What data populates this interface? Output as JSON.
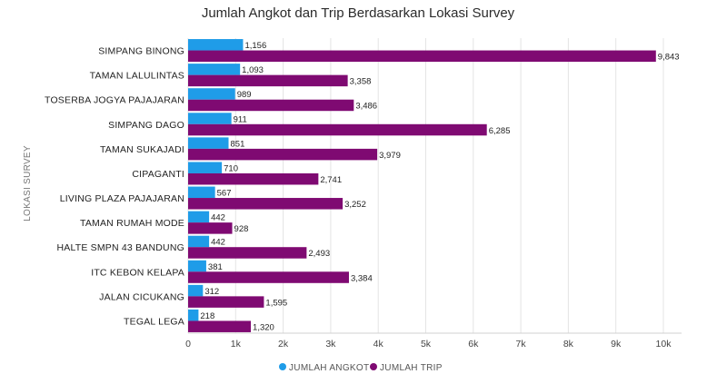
{
  "chart_data": {
    "type": "bar",
    "orientation": "horizontal",
    "title": "Jumlah Angkot dan Trip Berdasarkan Lokasi Survey",
    "ylabel": "LOKASI SURVEY",
    "xlabel": "",
    "xlim": [
      0,
      10000
    ],
    "x_ticks": [
      0,
      1000,
      2000,
      3000,
      4000,
      5000,
      6000,
      7000,
      8000,
      9000,
      10000
    ],
    "x_tick_labels": [
      "0",
      "1k",
      "2k",
      "3k",
      "4k",
      "5k",
      "6k",
      "7k",
      "8k",
      "9k",
      "10k"
    ],
    "grid": true,
    "legend_position": "bottom",
    "categories": [
      "SIMPANG BINONG",
      "TAMAN LALULINTAS",
      "TOSERBA JOGYA PAJAJARAN",
      "SIMPANG DAGO",
      "TAMAN SUKAJADI",
      "CIPAGANTI",
      "LIVING PLAZA PAJAJARAN",
      "TAMAN RUMAH MODE",
      "HALTE SMPN 43 BANDUNG",
      "ITC KEBON KELAPA",
      "JALAN CICUKANG",
      "TEGAL LEGA"
    ],
    "series": [
      {
        "name": "JUMLAH ANGKOT",
        "color": "#1f9ce8",
        "values": [
          1156,
          1093,
          989,
          911,
          851,
          710,
          567,
          442,
          442,
          381,
          312,
          218
        ],
        "labels": [
          "1,156",
          "1,093",
          "989",
          "911",
          "851",
          "710",
          "567",
          "442",
          "442",
          "381",
          "312",
          "218"
        ]
      },
      {
        "name": "JUMLAH TRIP",
        "color": "#7f0a72",
        "values": [
          9843,
          3358,
          3486,
          6285,
          3979,
          2741,
          3252,
          928,
          2493,
          3384,
          1595,
          1320
        ],
        "labels": [
          "9,843",
          "3,358",
          "3,486",
          "6,285",
          "3,979",
          "2,741",
          "3,252",
          "928",
          "2,493",
          "3,384",
          "1,595",
          "1,320"
        ]
      }
    ]
  }
}
